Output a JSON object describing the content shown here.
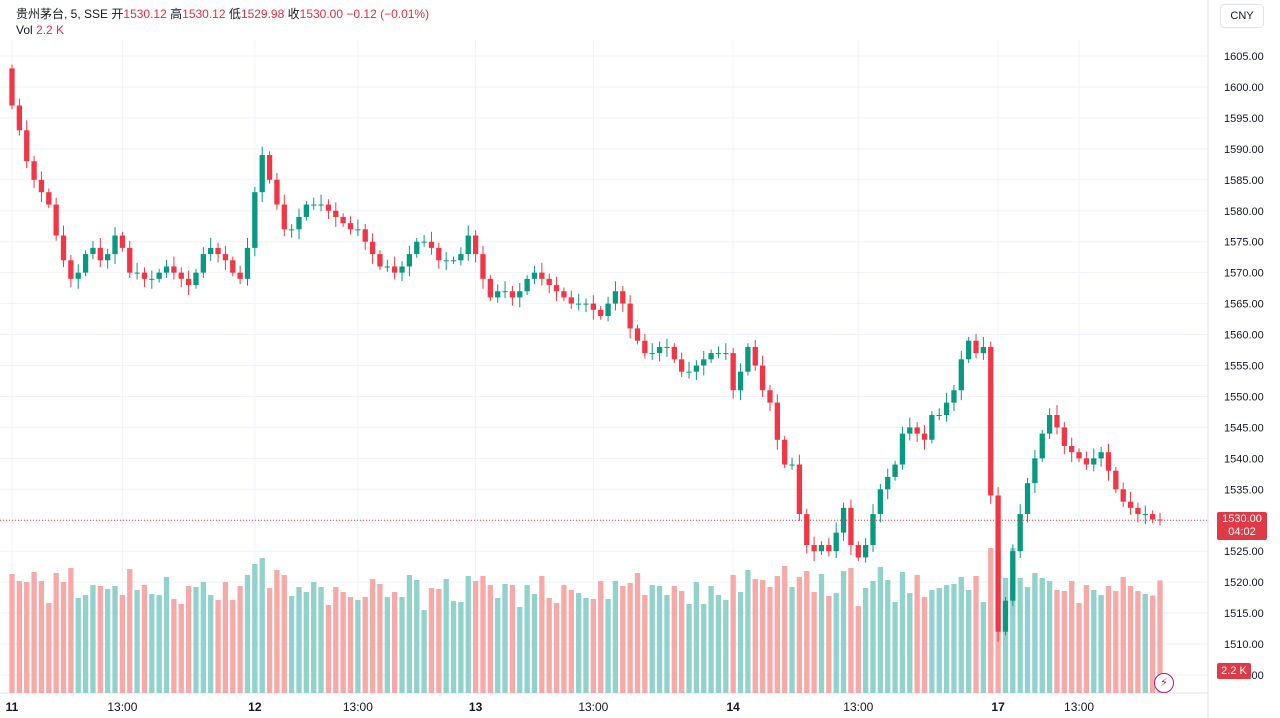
{
  "legend": {
    "symbol": "贵州茅台, 5, SSE",
    "open_label": "开",
    "open": "1530.12",
    "high_label": "高",
    "high": "1530.12",
    "low_label": "低",
    "low": "1529.98",
    "close_label": "收",
    "close": "1530.00",
    "change": "−0.12 (−0.01%)"
  },
  "volume_legend": {
    "label": "Vol",
    "value": "2.2 K"
  },
  "currency": "CNY",
  "last_price_tag": {
    "price": "1530.00",
    "countdown": "04:02"
  },
  "volume_tag": "2.2 K",
  "colors": {
    "up": "#089981",
    "down": "#f23645",
    "up_vol": "#92d2cc",
    "down_vol": "#f7a9a7"
  },
  "chart_data": {
    "type": "candlestick",
    "title": "贵州茅台, 5, SSE",
    "currency": "CNY",
    "ylim": [
      1505,
      1608
    ],
    "y_ticks": [
      "1605.00",
      "1600.00",
      "1595.00",
      "1590.00",
      "1585.00",
      "1580.00",
      "1575.00",
      "1570.00",
      "1565.00",
      "1560.00",
      "1555.00",
      "1550.00",
      "1545.00",
      "1540.00",
      "1535.00",
      "1530.00",
      "1525.00",
      "1520.00",
      "1515.00",
      "1510.00",
      "1505.00"
    ],
    "x_ticks": [
      "11",
      "13:00",
      "12",
      "13:00",
      "13",
      "13:00",
      "14",
      "13:00",
      "17",
      "13:00"
    ],
    "last_price": 1530.0,
    "volume_last": "2.2 K",
    "days": [
      {
        "label": "11",
        "open": [
          1603,
          1597,
          1593,
          1588,
          1585,
          1583,
          1581,
          1576,
          1572,
          1569,
          1570,
          1573,
          1574,
          1572,
          1573,
          1576,
          1574,
          1570,
          1570,
          1569,
          1569,
          1570,
          1571,
          1570,
          1569,
          1568,
          1570,
          1573,
          1574,
          1573,
          1572,
          1570,
          1569
        ]
      },
      {
        "label": "12",
        "open": [
          1574,
          1583,
          1589,
          1585,
          1581,
          1577,
          1577,
          1579,
          1581,
          1581,
          1581,
          1580,
          1579,
          1578,
          1577,
          1577,
          1575,
          1573,
          1571,
          1571,
          1570,
          1571,
          1573,
          1575,
          1575,
          1574,
          1572,
          1572,
          1572,
          1573
        ]
      },
      {
        "label": "13",
        "open": [
          1576,
          1573,
          1569,
          1566,
          1567,
          1567,
          1566,
          1567,
          1569,
          1570,
          1569,
          1568,
          1567,
          1566,
          1565,
          1565,
          1565,
          1564,
          1563,
          1565,
          1567,
          1565,
          1561,
          1559,
          1557,
          1557,
          1558,
          1558,
          1556,
          1554,
          1554,
          1555,
          1556,
          1557,
          1557
        ]
      },
      {
        "label": "14",
        "open": [
          1557,
          1551,
          1554,
          1558,
          1555,
          1551,
          1549,
          1543,
          1539,
          1539,
          1531,
          1526,
          1525,
          1526,
          1525,
          1528,
          1532,
          1526,
          1524,
          1526,
          1531,
          1535,
          1537,
          1539,
          1544,
          1545,
          1544,
          1543,
          1547,
          1547,
          1549,
          1551,
          1556,
          1559,
          1557,
          1558
        ]
      },
      {
        "label": "17",
        "open": [
          1534,
          1512,
          1517,
          1525,
          1531,
          1536,
          1540,
          1544,
          1547,
          1545,
          1542,
          1541,
          1540,
          1539,
          1540,
          1541,
          1538,
          1535,
          1533,
          1532,
          1531,
          1531,
          1530.12
        ]
      }
    ],
    "final_close": 1530.0,
    "volume_note": "volume bars below price (K)"
  }
}
